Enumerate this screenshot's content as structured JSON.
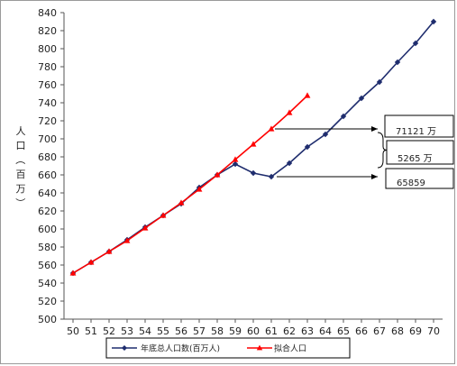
{
  "chart_data": {
    "type": "line",
    "title": "",
    "xlabel": "",
    "ylabel": "人口（百万）",
    "xlim": [
      50,
      70
    ],
    "ylim": [
      500,
      840
    ],
    "ytick_step": 20,
    "grid": false,
    "legend_position": "bottom",
    "x_ticks": [
      "50",
      "51",
      "52",
      "53",
      "54",
      "55",
      "56",
      "57",
      "58",
      "59",
      "60",
      "61",
      "62",
      "63",
      "64",
      "65",
      "66",
      "67",
      "68",
      "69",
      "70"
    ],
    "y_ticks": [
      "500",
      "520",
      "540",
      "560",
      "580",
      "600",
      "620",
      "640",
      "660",
      "680",
      "700",
      "720",
      "740",
      "760",
      "780",
      "800",
      "820",
      "840"
    ],
    "series": [
      {
        "name": "年底总人口数(百万人)",
        "color": "#1f2d6e",
        "marker": "diamond",
        "x": [
          50,
          51,
          52,
          53,
          54,
          55,
          56,
          57,
          58,
          59,
          60,
          61,
          62,
          63,
          64,
          65,
          66,
          67,
          68,
          69,
          70
        ],
        "y": [
          551,
          563,
          575,
          588,
          602,
          615,
          628,
          646,
          660,
          672,
          662,
          658,
          673,
          691,
          705,
          725,
          745,
          763,
          785,
          806,
          830
        ]
      },
      {
        "name": "拟合人口",
        "color": "#ff0000",
        "marker": "triangle",
        "x": [
          50,
          51,
          52,
          53,
          54,
          55,
          56,
          57,
          58,
          59,
          60,
          61,
          62,
          63
        ],
        "y": [
          551,
          563,
          575,
          587,
          601,
          615,
          629,
          644,
          660,
          677,
          694,
          711,
          729,
          748
        ]
      }
    ],
    "annotations": [
      {
        "text": "71121 万"
      },
      {
        "text": "5265 万"
      },
      {
        "text": "65859"
      }
    ]
  }
}
